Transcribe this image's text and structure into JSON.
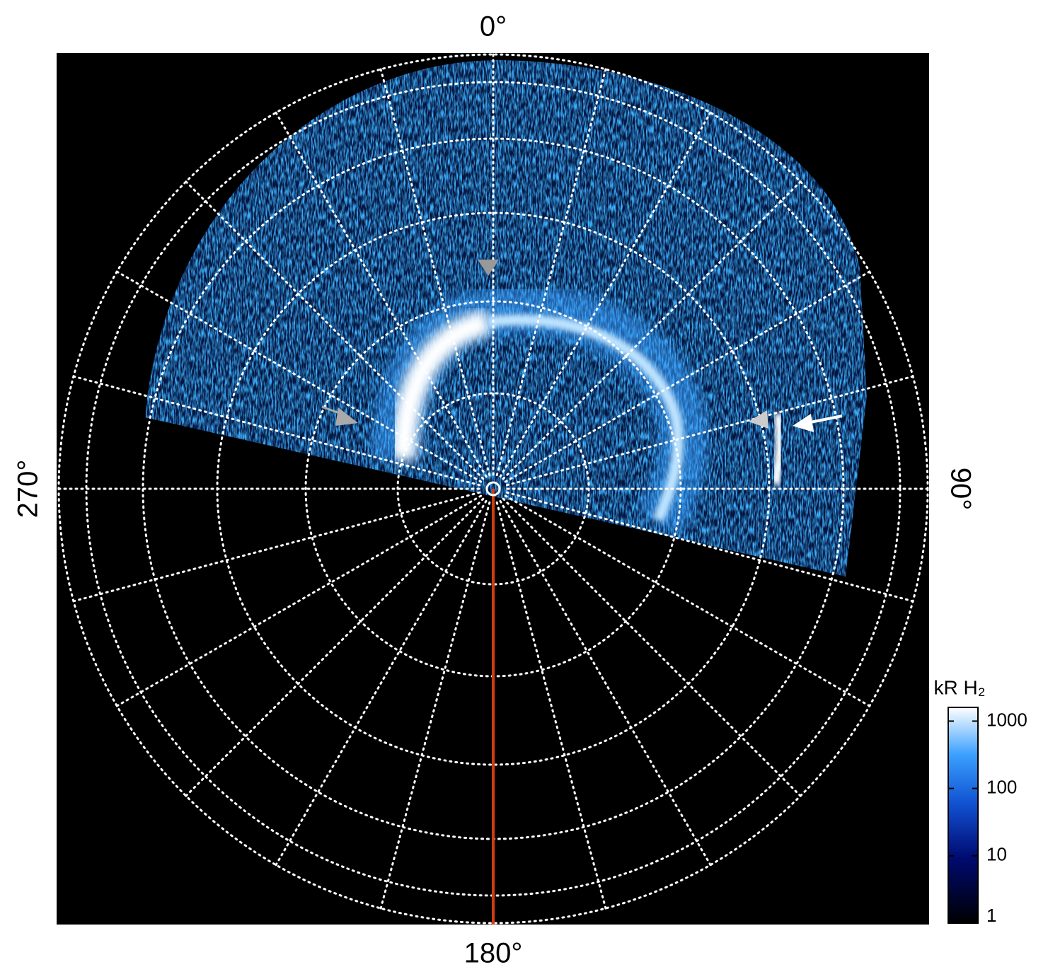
{
  "chart_data": {
    "type": "polar_image",
    "angle_labels": [
      "0°",
      "90°",
      "180°",
      "270°"
    ],
    "colorbar": {
      "title": "kR H₂",
      "scale": "log",
      "clim": [
        1,
        1600
      ],
      "ticks": [
        1,
        10,
        100,
        1000
      ]
    }
  }
}
